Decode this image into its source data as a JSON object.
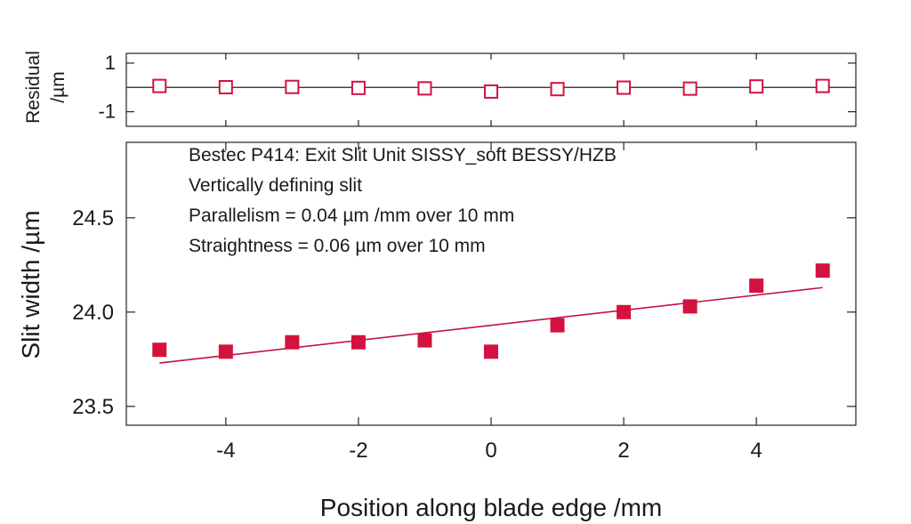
{
  "chart_data": [
    {
      "type": "scatter",
      "panel": "main",
      "xlabel": "Position along blade edge /mm",
      "ylabel": "Slit width /µm",
      "xlim": [
        -5.5,
        5.5
      ],
      "ylim": [
        23.4,
        24.9
      ],
      "x_ticks": [
        -4,
        -2,
        0,
        2,
        4
      ],
      "x_tick_labels": [
        "-4",
        "-2",
        "0",
        "2",
        "4"
      ],
      "y_ticks": [
        23.5,
        24.0,
        24.5
      ],
      "y_tick_labels": [
        "23.5",
        "24.0",
        "24.5"
      ],
      "grid": false,
      "annotations": [
        "Bestec P414: Exit Slit Unit SISSY_soft BESSY/HZB",
        "Vertically defining slit",
        "Parallelism = 0.04 µm /mm over 10 mm",
        "Straightness = 0.06 µm over 10 mm"
      ],
      "series": [
        {
          "marker": "filled-square",
          "color": "#d3123f",
          "x": [
            -5,
            -4,
            -3,
            -2,
            -1,
            0,
            1,
            2,
            3,
            4,
            5
          ],
          "y": [
            23.8,
            23.79,
            23.84,
            23.84,
            23.85,
            23.79,
            23.93,
            24.0,
            24.03,
            24.14,
            24.22
          ]
        }
      ],
      "fit_line": {
        "color": "#c0124a",
        "x": [
          -5,
          5
        ],
        "y": [
          23.73,
          24.13
        ]
      }
    },
    {
      "type": "scatter",
      "panel": "residual",
      "ylabel_lines": [
        "Residual",
        "/µm"
      ],
      "xlim": [
        -5.5,
        5.5
      ],
      "ylim": [
        -1.6,
        1.4
      ],
      "y_ticks": [
        1,
        -1
      ],
      "y_tick_labels": [
        "1",
        "-1"
      ],
      "zero_line": true,
      "series": [
        {
          "marker": "open-square",
          "color": "#d3123f",
          "x": [
            -5,
            -4,
            -3,
            -2,
            -1,
            0,
            1,
            2,
            3,
            4,
            5
          ],
          "y": [
            0.06,
            0.01,
            0.02,
            -0.02,
            -0.04,
            -0.17,
            -0.07,
            -0.01,
            -0.05,
            0.04,
            0.06
          ]
        }
      ]
    }
  ]
}
